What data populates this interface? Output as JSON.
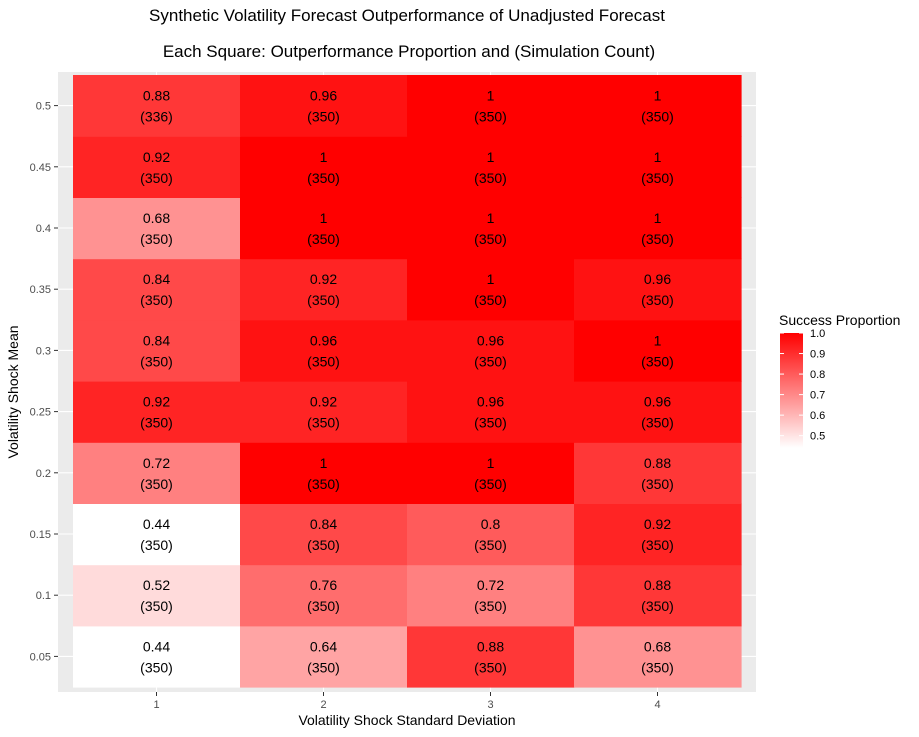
{
  "chart_data": {
    "type": "heatmap",
    "title": "Synthetic Volatility Forecast Outperformance of Unadjusted Forecast",
    "subtitle": "Each Square: Outperformance Proportion and (Simulation Count)",
    "xlabel": "Volatility Shock Standard Deviation",
    "ylabel": "Volatility Shock Mean",
    "x": [
      "1",
      "2",
      "3",
      "4"
    ],
    "y": [
      "0.05",
      "0.1",
      "0.15",
      "0.2",
      "0.25",
      "0.3",
      "0.35",
      "0.4",
      "0.45",
      "0.5"
    ],
    "values": [
      [
        0.44,
        0.64,
        0.88,
        0.68
      ],
      [
        0.52,
        0.76,
        0.72,
        0.88
      ],
      [
        0.44,
        0.84,
        0.8,
        0.92
      ],
      [
        0.72,
        1,
        1,
        0.88
      ],
      [
        0.92,
        0.92,
        0.96,
        0.96
      ],
      [
        0.84,
        0.96,
        0.96,
        1
      ],
      [
        0.84,
        0.92,
        1,
        0.96
      ],
      [
        0.68,
        1,
        1,
        1
      ],
      [
        0.92,
        1,
        1,
        1
      ],
      [
        0.88,
        0.96,
        1,
        1
      ]
    ],
    "counts": [
      [
        350,
        350,
        350,
        350
      ],
      [
        350,
        350,
        350,
        350
      ],
      [
        350,
        350,
        350,
        350
      ],
      [
        350,
        350,
        350,
        350
      ],
      [
        350,
        350,
        350,
        350
      ],
      [
        350,
        350,
        350,
        350
      ],
      [
        350,
        350,
        350,
        350
      ],
      [
        350,
        350,
        350,
        350
      ],
      [
        350,
        350,
        350,
        350
      ],
      [
        336,
        350,
        350,
        350
      ]
    ],
    "legend": {
      "title": "Success Proportion",
      "ticks": [
        "1.0",
        "0.9",
        "0.8",
        "0.7",
        "0.6",
        "0.5"
      ],
      "range": [
        0.44,
        1.0
      ],
      "low_color": "#ffffff",
      "high_color": "#ff0000",
      "placement": "right"
    },
    "panel_background": "#ebebeb",
    "grid": true
  }
}
